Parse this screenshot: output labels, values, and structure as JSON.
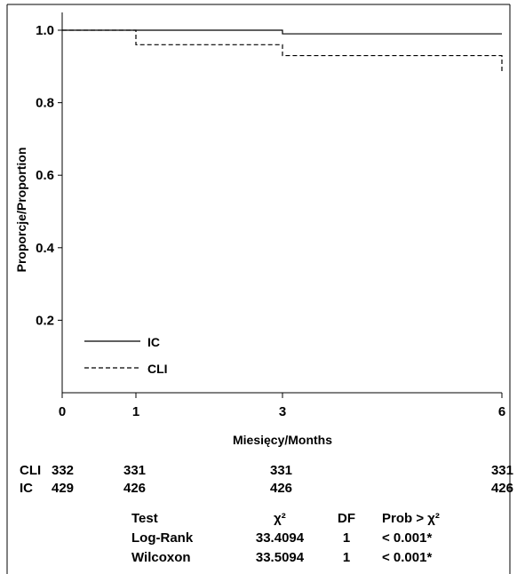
{
  "chart_data": {
    "type": "line",
    "step": true,
    "xlabel": "Miesięcy/Months",
    "ylabel": "Proporcje/Proportion",
    "xlim": [
      0,
      6
    ],
    "ylim": [
      0,
      1.0
    ],
    "xticks": [
      0,
      1,
      3,
      6
    ],
    "yticks": [
      0.2,
      0.4,
      0.6,
      0.8,
      1.0
    ],
    "xtick_labels": [
      "0",
      "1",
      "3",
      "6"
    ],
    "ytick_labels": [
      "0.2",
      "0.4",
      "0.6",
      "0.8",
      "1.0"
    ],
    "grid": false,
    "legend_position": "bottom-left",
    "series": [
      {
        "name": "IC",
        "style": "solid",
        "x": [
          0,
          3,
          3,
          6
        ],
        "y": [
          1.0,
          1.0,
          0.99,
          0.99
        ]
      },
      {
        "name": "CLI",
        "style": "dashed",
        "x": [
          0,
          1,
          1,
          3,
          3,
          6,
          6
        ],
        "y": [
          1.0,
          1.0,
          0.96,
          0.96,
          0.93,
          0.93,
          0.88
        ]
      }
    ],
    "risk_table": {
      "x": [
        0,
        1,
        3,
        6
      ],
      "rows": [
        {
          "label": "CLI",
          "values": [
            "332",
            "331",
            "331",
            "331"
          ]
        },
        {
          "label": "IC",
          "values": [
            "429",
            "426",
            "426",
            "426"
          ]
        }
      ]
    },
    "tests": {
      "headers": [
        "Test",
        "χ²",
        "DF",
        "Prob > χ²"
      ],
      "rows": [
        [
          "Log-Rank",
          "33.4094",
          "1",
          "< 0.001*"
        ],
        [
          "Wilcoxon",
          "33.5094",
          "1",
          "< 0.001*"
        ]
      ]
    }
  }
}
